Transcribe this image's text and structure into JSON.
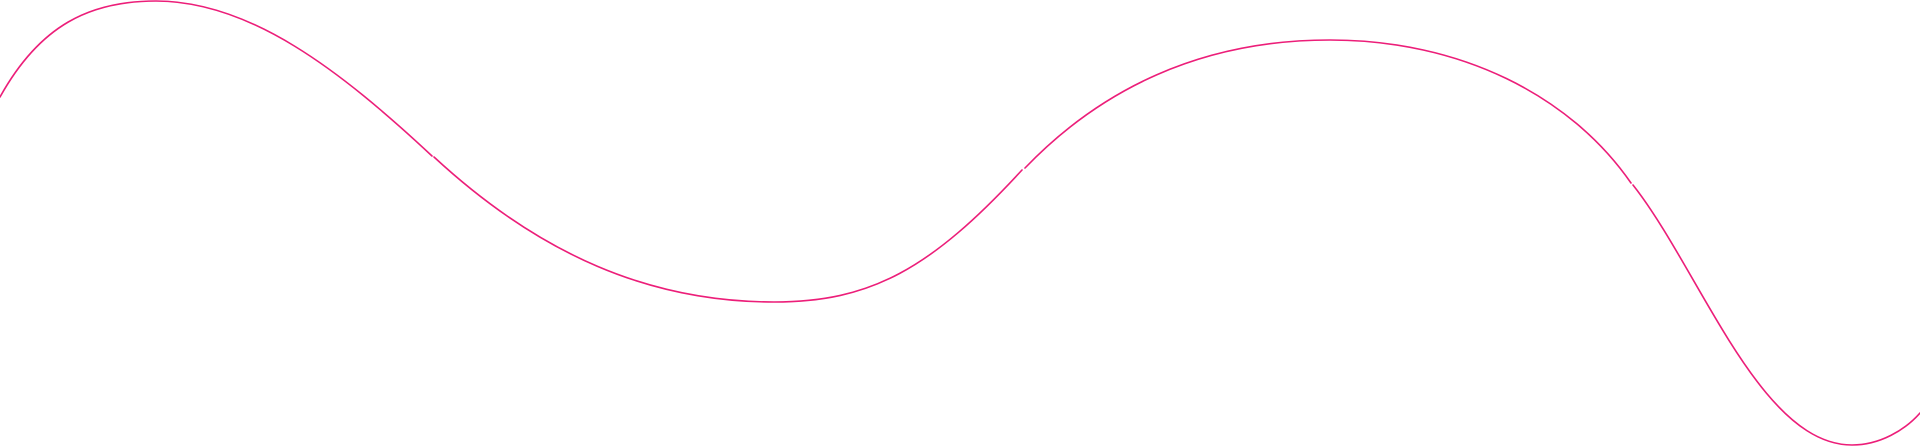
{
  "decoration": {
    "type": "wavy-line",
    "segments": 4,
    "stroke_color": "#ec1e79",
    "background_color": "#ffffff"
  }
}
